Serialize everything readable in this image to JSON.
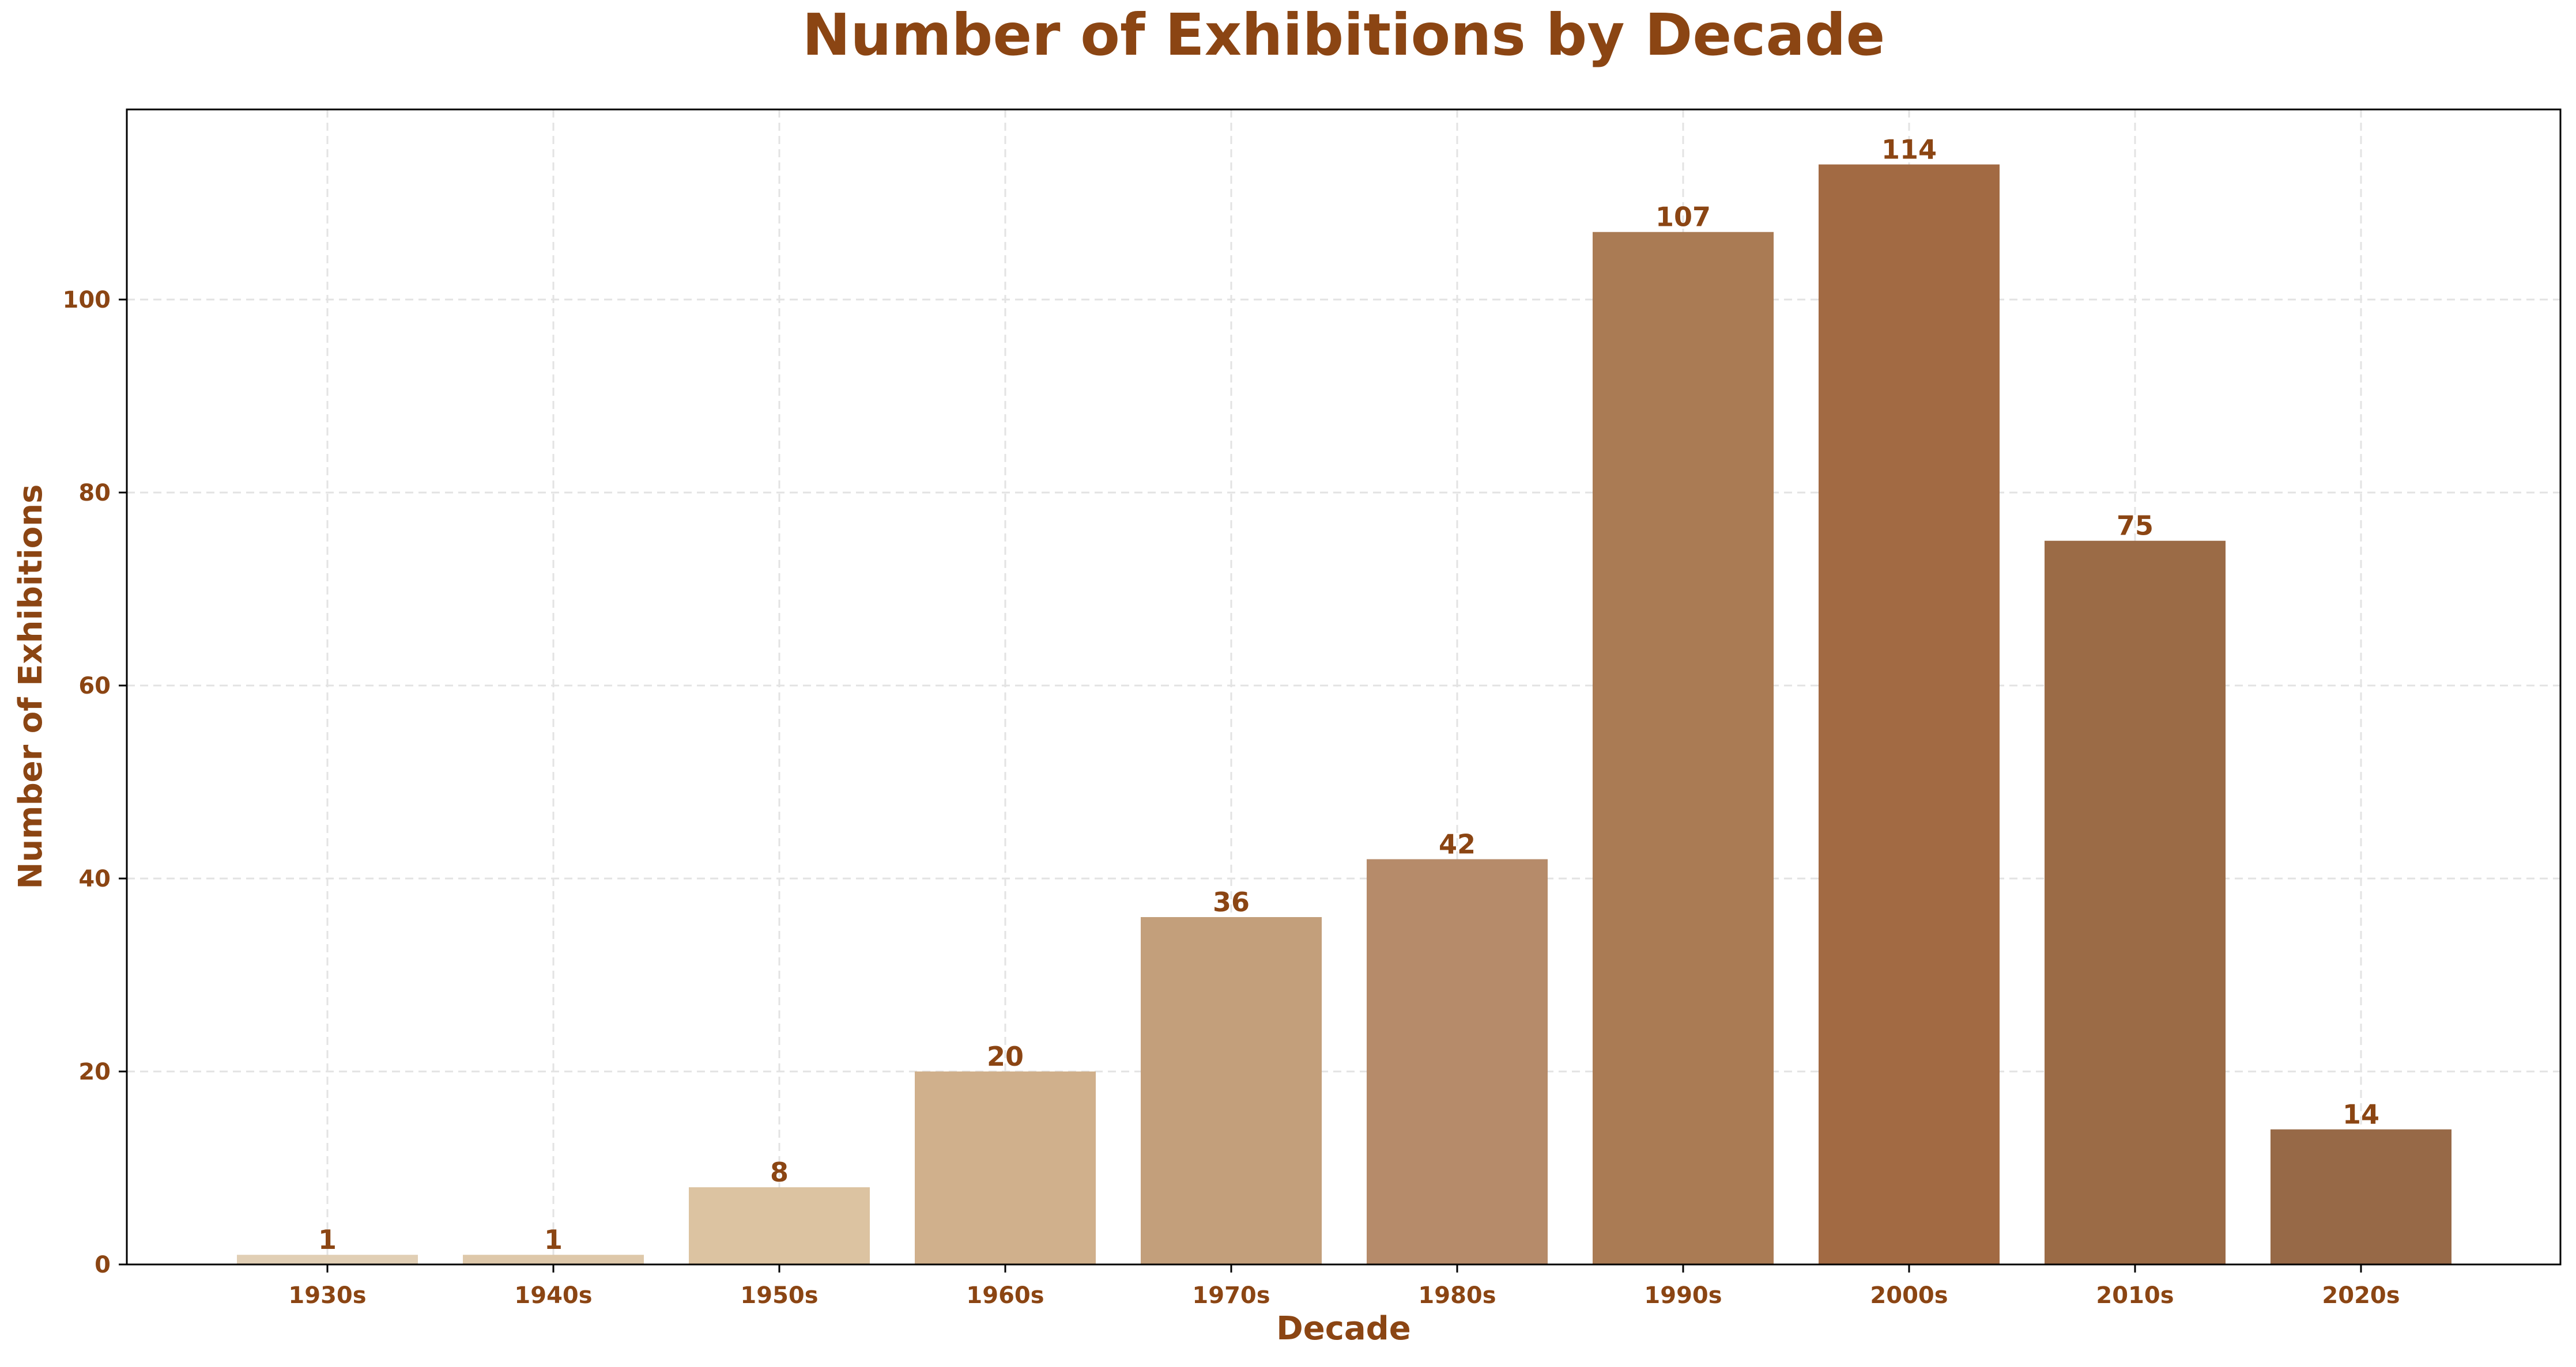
{
  "chart_data": {
    "type": "bar",
    "title": "Number of Exhibitions by Decade",
    "xlabel": "Decade",
    "ylabel": "Number of Exhibitions",
    "categories": [
      "1930s",
      "1940s",
      "1950s",
      "1960s",
      "1970s",
      "1980s",
      "1990s",
      "2000s",
      "2010s",
      "2020s"
    ],
    "values": [
      1,
      1,
      8,
      20,
      36,
      42,
      107,
      114,
      75,
      14
    ],
    "data_labels": [
      "1",
      "1",
      "8",
      "20",
      "36",
      "42",
      "107",
      "114",
      "75",
      "14"
    ],
    "ylim": [
      0,
      119.7
    ],
    "yticks": [
      0,
      20,
      40,
      60,
      80,
      100
    ],
    "ytick_labels": [
      "0",
      "20",
      "40",
      "60",
      "80",
      "100"
    ],
    "grid": true,
    "legend": "none",
    "colors": {
      "text": "#8B4513",
      "grid": "#e3e3e3",
      "axes": "#000000",
      "bars": [
        "#e1cfb5",
        "#dec8aa",
        "#dcc3a1",
        "#d0b08c",
        "#c39f7b",
        "#b68b6a",
        "#aa7b54",
        "#a26a43",
        "#9b6b46",
        "#976947"
      ]
    }
  }
}
